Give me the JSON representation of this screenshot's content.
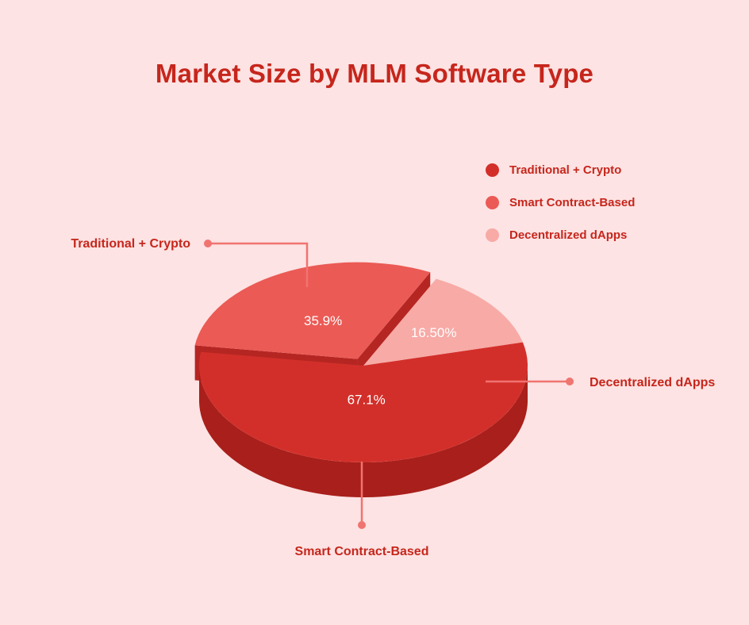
{
  "chart_data": {
    "type": "pie",
    "title": "Market Size by MLM Software Type",
    "categories": [
      "Traditional + Crypto",
      "Smart Contract-Based",
      "Decentralized dApps"
    ],
    "values": [
      67.1,
      35.9,
      16.5
    ],
    "value_labels": [
      "67.1%",
      "35.9%",
      "16.50%"
    ],
    "legend_position": "top-right",
    "exploded": "Smart Contract-Based",
    "three_d": true
  },
  "colors": {
    "slices": [
      "#d32f2a",
      "#eb5a55",
      "#f7aaa6"
    ],
    "slice_sides": [
      "#a81f1b",
      "#b52622",
      "#b52622"
    ],
    "callout_line": "#f07470",
    "text": "#c6261c",
    "background": "#fde3e3"
  }
}
